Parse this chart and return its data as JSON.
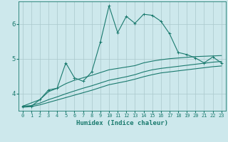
{
  "title": "",
  "xlabel": "Humidex (Indice chaleur)",
  "ylabel": "",
  "xlim": [
    -0.5,
    23.5
  ],
  "ylim": [
    3.5,
    6.65
  ],
  "background_color": "#cde8ec",
  "grid_color": "#aac8cc",
  "line_color": "#1a7a6e",
  "x_ticks": [
    0,
    1,
    2,
    3,
    4,
    5,
    6,
    7,
    8,
    9,
    10,
    11,
    12,
    13,
    14,
    15,
    16,
    17,
    18,
    19,
    20,
    21,
    22,
    23
  ],
  "y_ticks": [
    4,
    5,
    6
  ],
  "line1_x": [
    0,
    1,
    2,
    3,
    4,
    5,
    6,
    7,
    8,
    9,
    10,
    11,
    12,
    13,
    14,
    15,
    16,
    17,
    18,
    19,
    20,
    21,
    22,
    23
  ],
  "line1_y": [
    3.63,
    3.63,
    3.82,
    4.1,
    4.15,
    4.88,
    4.45,
    4.35,
    4.62,
    5.48,
    6.52,
    5.75,
    6.22,
    6.02,
    6.28,
    6.25,
    6.08,
    5.72,
    5.18,
    5.12,
    5.02,
    4.88,
    5.05,
    4.88
  ],
  "line2_x": [
    0,
    2,
    3,
    4,
    5,
    6,
    7,
    8,
    9,
    10,
    11,
    12,
    13,
    14,
    15,
    16,
    17,
    18,
    19,
    20,
    21,
    22,
    23
  ],
  "line2_y": [
    3.63,
    3.82,
    4.05,
    4.15,
    4.28,
    4.38,
    4.45,
    4.52,
    4.6,
    4.68,
    4.72,
    4.76,
    4.8,
    4.88,
    4.93,
    4.97,
    5.0,
    5.02,
    5.04,
    5.06,
    5.07,
    5.08,
    5.09
  ],
  "line3_x": [
    0,
    1,
    2,
    3,
    4,
    5,
    6,
    7,
    8,
    9,
    10,
    11,
    12,
    13,
    14,
    15,
    16,
    17,
    18,
    19,
    20,
    21,
    22,
    23
  ],
  "line3_y": [
    3.63,
    3.65,
    3.72,
    3.82,
    3.9,
    3.99,
    4.07,
    4.15,
    4.22,
    4.3,
    4.38,
    4.43,
    4.48,
    4.54,
    4.62,
    4.68,
    4.72,
    4.75,
    4.78,
    4.81,
    4.84,
    4.87,
    4.9,
    4.92
  ],
  "line4_x": [
    0,
    1,
    2,
    3,
    4,
    5,
    6,
    7,
    8,
    9,
    10,
    11,
    12,
    13,
    14,
    15,
    16,
    17,
    18,
    19,
    20,
    21,
    22,
    23
  ],
  "line4_y": [
    3.6,
    3.62,
    3.67,
    3.74,
    3.81,
    3.88,
    3.95,
    4.02,
    4.09,
    4.17,
    4.25,
    4.3,
    4.35,
    4.41,
    4.48,
    4.54,
    4.59,
    4.62,
    4.65,
    4.68,
    4.71,
    4.74,
    4.77,
    4.79
  ],
  "marker": "+",
  "marker_size": 3,
  "linewidth": 0.8
}
